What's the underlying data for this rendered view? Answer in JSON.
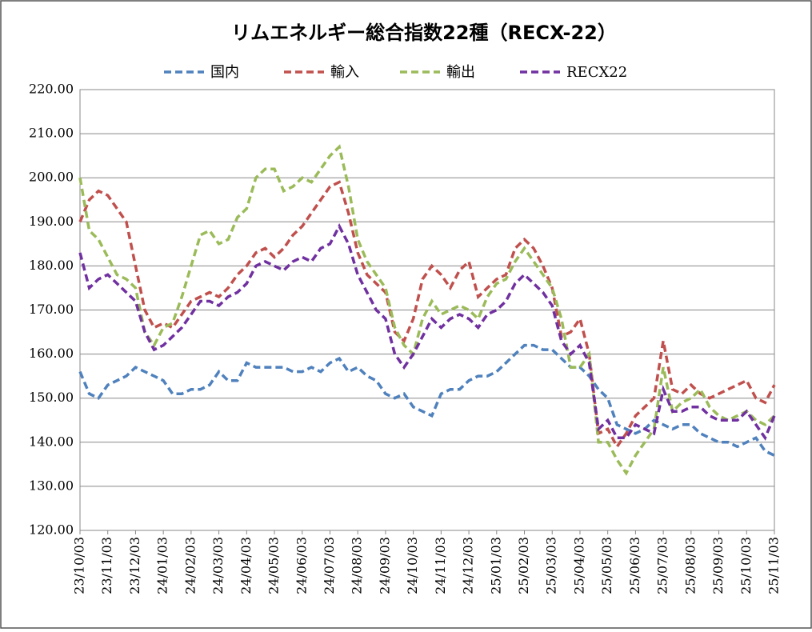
{
  "chart_data": {
    "type": "line",
    "title": "リムエネルギー総合指数22種（RECX-22）",
    "categories": [
      "23/10/03",
      null,
      null,
      "23/11/03",
      null,
      null,
      "23/12/03",
      null,
      null,
      "24/01/03",
      null,
      null,
      "24/02/03",
      null,
      null,
      "24/03/03",
      null,
      null,
      "24/04/03",
      null,
      null,
      "24/05/03",
      null,
      null,
      "24/06/03",
      null,
      null,
      "24/07/03",
      null,
      null,
      "24/08/03",
      null,
      null,
      "24/09/03",
      null,
      null,
      "24/10/03",
      null,
      null,
      "24/11/03",
      null,
      null,
      "24/12/03",
      null,
      null,
      "25/01/03",
      null,
      null,
      "25/02/03",
      null,
      null,
      "25/03/03",
      null,
      null,
      "25/04/03",
      null,
      null,
      "25/05/03",
      null,
      null,
      "25/06/03",
      null,
      null,
      "25/07/03",
      null,
      null,
      "25/08/03",
      null,
      null,
      "25/09/03",
      null,
      null,
      "25/10/03",
      null,
      null,
      "25/11/03"
    ],
    "series": [
      {
        "name": "国内",
        "color": "#4f81bd",
        "values": [
          156,
          151,
          150,
          153,
          154,
          155,
          157,
          156,
          155,
          154,
          151,
          151,
          152,
          152,
          153,
          156,
          154,
          154,
          158,
          157,
          157,
          157,
          157,
          156,
          156,
          157,
          156,
          158,
          159,
          156,
          157,
          155,
          154,
          151,
          150,
          151,
          148,
          147,
          146,
          151,
          152,
          152,
          154,
          155,
          155,
          156,
          158,
          160,
          162,
          162,
          161,
          161,
          159,
          157,
          157,
          155,
          152,
          150,
          144,
          143,
          142,
          143,
          145,
          144,
          143,
          144,
          144,
          142,
          141,
          140,
          140,
          139,
          140,
          141,
          138,
          137
        ]
      },
      {
        "name": "輸入",
        "color": "#c0504d",
        "values": [
          190,
          195,
          197,
          196,
          193,
          190,
          180,
          170,
          166,
          167,
          166,
          169,
          172,
          173,
          174,
          173,
          175,
          178,
          180,
          183,
          184,
          182,
          184,
          187,
          189,
          192,
          195,
          198,
          199,
          192,
          183,
          178,
          176,
          174,
          165,
          163,
          168,
          177,
          180,
          178,
          175,
          179,
          181,
          173,
          175,
          177,
          178,
          184,
          186,
          184,
          180,
          175,
          164,
          165,
          168,
          160,
          142,
          143,
          139,
          142,
          146,
          148,
          150,
          163,
          152,
          151,
          153,
          151,
          150,
          151,
          152,
          153,
          154,
          150,
          149,
          153
        ]
      },
      {
        "name": "輸出",
        "color": "#9bbb59",
        "values": [
          200,
          188,
          186,
          182,
          178,
          177,
          175,
          165,
          162,
          166,
          167,
          173,
          180,
          187,
          188,
          185,
          186,
          191,
          193,
          200,
          202,
          202,
          197,
          198,
          200,
          199,
          202,
          205,
          207,
          198,
          186,
          181,
          178,
          175,
          166,
          162,
          160,
          168,
          172,
          169,
          170,
          171,
          170,
          168,
          173,
          176,
          177,
          181,
          184,
          181,
          178,
          175,
          168,
          157,
          157,
          160,
          140,
          140,
          136,
          133,
          137,
          140,
          143,
          157,
          147,
          149,
          150,
          152,
          148,
          146,
          145,
          146,
          147,
          145,
          144,
          146
        ]
      },
      {
        "name": "RECX22",
        "color": "#7030a0",
        "values": [
          183,
          175,
          177,
          178,
          176,
          174,
          172,
          165,
          161,
          162,
          164,
          166,
          169,
          172,
          172,
          171,
          173,
          174,
          176,
          180,
          181,
          180,
          179,
          181,
          182,
          181,
          184,
          185,
          189,
          185,
          178,
          174,
          170,
          168,
          160,
          157,
          160,
          164,
          168,
          166,
          168,
          169,
          168,
          166,
          169,
          170,
          172,
          176,
          178,
          176,
          174,
          171,
          163,
          160,
          162,
          158,
          143,
          145,
          141,
          141,
          144,
          143,
          142,
          152,
          147,
          147,
          148,
          148,
          146,
          145,
          145,
          145,
          147,
          144,
          141,
          146
        ]
      }
    ],
    "ylim": [
      120,
      220
    ],
    "yticks": [
      {
        "value": 120,
        "label": "120.00"
      },
      {
        "value": 130,
        "label": "130.00"
      },
      {
        "value": 140,
        "label": "140.00"
      },
      {
        "value": 150,
        "label": "150.00"
      },
      {
        "value": 160,
        "label": "160.00"
      },
      {
        "value": 170,
        "label": "170.00"
      },
      {
        "value": 180,
        "label": "180.00"
      },
      {
        "value": 190,
        "label": "190.00"
      },
      {
        "value": 200,
        "label": "200.00"
      },
      {
        "value": 210,
        "label": "210.00"
      },
      {
        "value": 220,
        "label": "220.00"
      }
    ],
    "grid": true,
    "legend": "top"
  }
}
